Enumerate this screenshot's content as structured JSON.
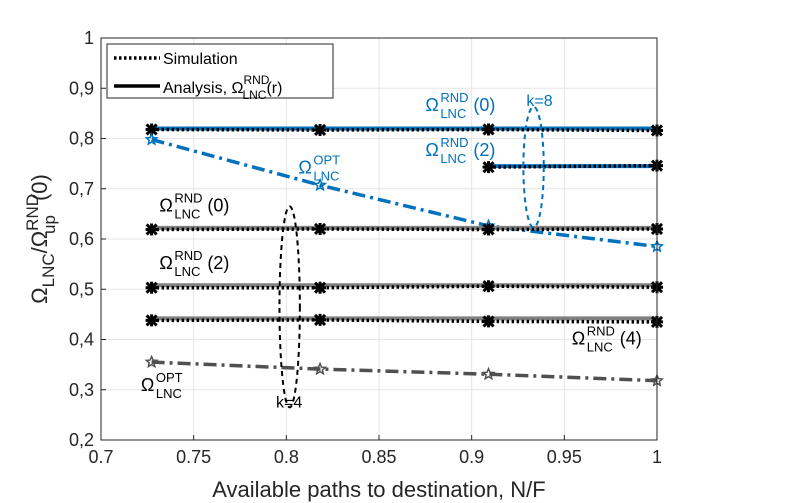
{
  "chart_data": {
    "type": "line",
    "xlabel": "Available paths to destination, N/F",
    "ylabel": {
      "omega": "Ω",
      "sub1": "LNC",
      "slash": "/",
      "omega2": "Ω",
      "sub2": "up",
      "sup2": "RND",
      "arg": "(0)"
    },
    "xlim": [
      0.7,
      1.0
    ],
    "ylim": [
      0.2,
      1.0
    ],
    "xticks": [
      0.7,
      0.75,
      0.8,
      0.85,
      0.9,
      0.95,
      1.0
    ],
    "xtick_labels": [
      "0.7",
      "0.75",
      "0.8",
      "0.85",
      "0.9",
      "0.95",
      "1"
    ],
    "yticks": [
      0.2,
      0.3,
      0.4,
      0.5,
      0.6,
      0.7,
      0.8,
      0.9,
      1.0
    ],
    "ytick_labels": [
      "0,2",
      "0,3",
      "0,4",
      "0,5",
      "0,6",
      "0,7",
      "0,8",
      "0,9",
      "1"
    ],
    "grid": true,
    "legend": {
      "position": "top-left",
      "entries": [
        {
          "label": "Simulation"
        },
        {
          "label_prefix": "Analysis, ",
          "omega": "Ω",
          "sub": "LNC",
          "sup": "RND",
          "arg": "(r)"
        }
      ]
    },
    "series": [
      {
        "name": "k=8 analysis RND(0)",
        "style": "analysis",
        "color": "#0072BD",
        "x": [
          0.7273,
          0.8182,
          0.9091,
          1.0
        ],
        "y": [
          0.82,
          0.82,
          0.82,
          0.82
        ]
      },
      {
        "name": "k=8 simulation RND(0)",
        "style": "simulation",
        "color": "#000000",
        "marker": "x",
        "x": [
          0.7273,
          0.8182,
          0.9091,
          1.0
        ],
        "y": [
          0.818,
          0.817,
          0.818,
          0.816
        ]
      },
      {
        "name": "k=8 analysis RND(2)",
        "style": "analysis",
        "color": "#0072BD",
        "x": [
          0.9091,
          1.0
        ],
        "y": [
          0.745,
          0.745
        ]
      },
      {
        "name": "k=8 simulation RND(2)",
        "style": "simulation",
        "color": "#000000",
        "marker": "x",
        "x": [
          0.9091,
          1.0
        ],
        "y": [
          0.743,
          0.746
        ]
      },
      {
        "name": "k=8 OPT",
        "style": "opt",
        "color": "#0072BD",
        "marker": "star",
        "x": [
          0.7273,
          0.8182,
          0.9091,
          1.0
        ],
        "y": [
          0.798,
          0.707,
          0.626,
          0.585
        ]
      },
      {
        "name": "k=4 analysis RND(0)",
        "style": "analysis",
        "color": "#808080",
        "x": [
          0.7273,
          0.8182,
          0.9091,
          1.0
        ],
        "y": [
          0.622,
          0.622,
          0.622,
          0.622
        ]
      },
      {
        "name": "k=4 simulation RND(0)",
        "style": "simulation",
        "color": "#000000",
        "marker": "x",
        "x": [
          0.7273,
          0.8182,
          0.9091,
          1.0
        ],
        "y": [
          0.619,
          0.62,
          0.619,
          0.62
        ]
      },
      {
        "name": "k=4 analysis RND(2)",
        "style": "analysis",
        "color": "#808080",
        "x": [
          0.7273,
          0.8182,
          0.9091,
          1.0
        ],
        "y": [
          0.508,
          0.508,
          0.508,
          0.508
        ]
      },
      {
        "name": "k=4 simulation RND(2)",
        "style": "simulation",
        "color": "#000000",
        "marker": "x",
        "x": [
          0.7273,
          0.8182,
          0.9091,
          1.0
        ],
        "y": [
          0.503,
          0.503,
          0.506,
          0.504
        ]
      },
      {
        "name": "k=4 analysis RND(4)",
        "style": "analysis",
        "color": "#808080",
        "x": [
          0.7273,
          0.8182,
          0.9091,
          1.0
        ],
        "y": [
          0.442,
          0.442,
          0.442,
          0.442
        ]
      },
      {
        "name": "k=4 simulation RND(4)",
        "style": "simulation",
        "color": "#000000",
        "marker": "x",
        "x": [
          0.7273,
          0.8182,
          0.9091,
          1.0
        ],
        "y": [
          0.438,
          0.439,
          0.436,
          0.435
        ]
      },
      {
        "name": "k=4 OPT",
        "style": "opt",
        "color": "#505050",
        "marker": "star",
        "x": [
          0.7273,
          0.8182,
          0.9091,
          1.0
        ],
        "y": [
          0.355,
          0.341,
          0.331,
          0.318
        ]
      }
    ],
    "annotations": [
      {
        "id": "blue-rnd0",
        "omega": "Ω",
        "sub": "LNC",
        "sup": "RND",
        "arg": "(0)",
        "color": "#0072BD",
        "x": 0.875,
        "y": 0.855
      },
      {
        "id": "blue-rnd2",
        "omega": "Ω",
        "sub": "LNC",
        "sup": "RND",
        "arg": "(2)",
        "color": "#0072BD",
        "x": 0.875,
        "y": 0.765
      },
      {
        "id": "blue-opt",
        "omega": "Ω",
        "sub": "LNC",
        "sup": "OPT",
        "arg": "",
        "color": "#0072BD",
        "x": 0.8065,
        "y": 0.73
      },
      {
        "id": "black-rnd0",
        "omega": "Ω",
        "sub": "LNC",
        "sup": "RND",
        "arg": "(0)",
        "color": "#000000",
        "x": 0.7315,
        "y": 0.655
      },
      {
        "id": "black-rnd2",
        "omega": "Ω",
        "sub": "LNC",
        "sup": "RND",
        "arg": "(2)",
        "color": "#000000",
        "x": 0.7315,
        "y": 0.54
      },
      {
        "id": "black-rnd4",
        "omega": "Ω",
        "sub": "LNC",
        "sup": "RND",
        "arg": "(4)",
        "color": "#000000",
        "x": 0.954,
        "y": 0.39
      },
      {
        "id": "black-opt",
        "omega": "Ω",
        "sub": "LNC",
        "sup": "OPT",
        "arg": "",
        "color": "#000000",
        "x": 0.7215,
        "y": 0.298
      }
    ],
    "groups": [
      {
        "label": "k=8",
        "color": "#0072BD",
        "cx": 0.9334,
        "cy": 0.743,
        "rx": 0.0055,
        "ry": 0.12,
        "label_x": 0.9366,
        "label_y": 0.865
      },
      {
        "label": "k=4",
        "color": "#000000",
        "cx": 0.8018,
        "cy": 0.465,
        "rx": 0.0055,
        "ry": 0.2,
        "label_x": 0.8015,
        "label_y": 0.265
      }
    ]
  }
}
